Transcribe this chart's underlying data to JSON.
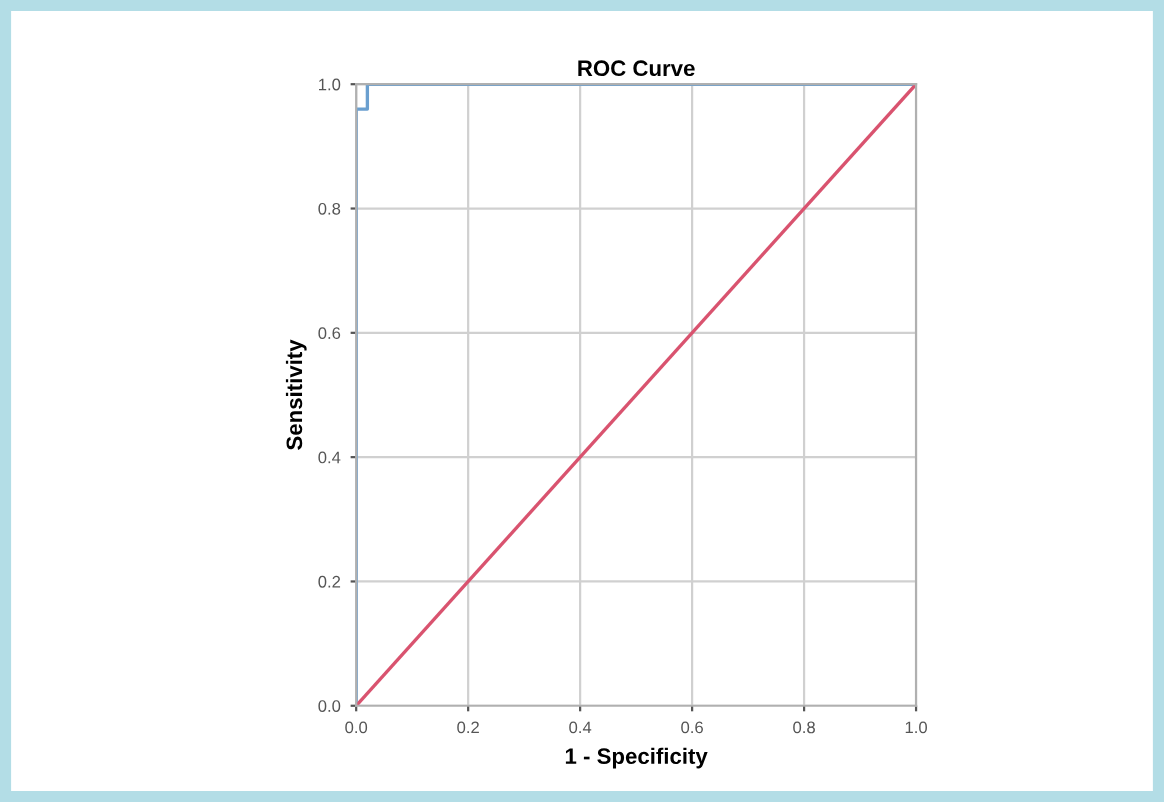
{
  "chart_data": {
    "type": "line",
    "title": "ROC Curve",
    "xlabel": "1 - Specificity",
    "ylabel": "Sensitivity",
    "series": [
      {
        "color": "#6a9fcf",
        "x": [
          0,
          0,
          0.02,
          0.02,
          1
        ],
        "values": [
          0,
          0.96,
          0.96,
          1,
          1
        ]
      },
      {
        "color": "#d9536f",
        "x": [
          0,
          1
        ],
        "values": [
          0,
          1
        ]
      }
    ],
    "xlim": [
      0,
      1
    ],
    "ylim": [
      0,
      1
    ],
    "xticks": [
      {
        "value": 0,
        "label": "0.0"
      },
      0.2,
      0.4,
      0.6,
      0.8,
      {
        "value": 1,
        "label": "1.0"
      }
    ],
    "yticks": [
      {
        "value": 0,
        "label": "0.0"
      },
      0.2,
      0.4,
      0.6,
      0.8,
      {
        "value": 1,
        "label": "1.0"
      }
    ],
    "grid": true,
    "marker": "none",
    "line_style": "solid"
  }
}
